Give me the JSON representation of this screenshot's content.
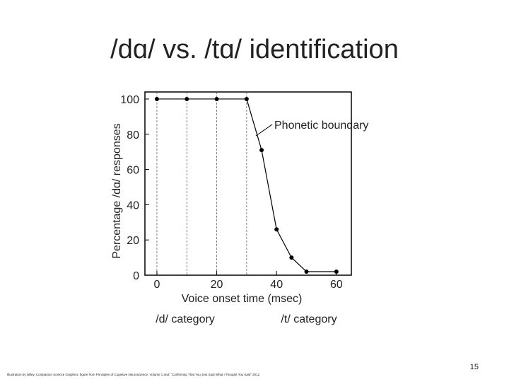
{
  "slide_title": "/dɑ/ vs. /tɑ/ identification",
  "page_number": "15",
  "footnote": "Illustration by Wiley, Companion Science Graphics: figure from Principles of Cognitive Neuroscience, Volume 1 and: “Confirming That You Just Said What I Thought You Said” 2012",
  "chart_data": {
    "type": "line",
    "x": [
      0,
      10,
      20,
      30,
      35,
      40,
      45,
      50,
      60
    ],
    "series": [
      {
        "name": "Percentage /dɑ/ responses",
        "color": "#000000",
        "values": [
          100,
          100,
          100,
          100,
          71,
          26,
          10,
          2,
          2
        ]
      }
    ],
    "xlim": [
      -4,
      65
    ],
    "ylim": [
      0,
      104
    ],
    "xticks": [
      0,
      20,
      40,
      60
    ],
    "yticks": [
      0,
      20,
      40,
      60,
      80,
      100
    ],
    "dashed_lines_x": [
      0,
      10,
      20,
      30
    ],
    "x_label": "Voice onset time (msec)",
    "y_label": "Percentage /dɑ/ responses",
    "annotation": "Phonetic boundary",
    "category_labels": [
      "/d/ category",
      "/t/ category"
    ]
  }
}
